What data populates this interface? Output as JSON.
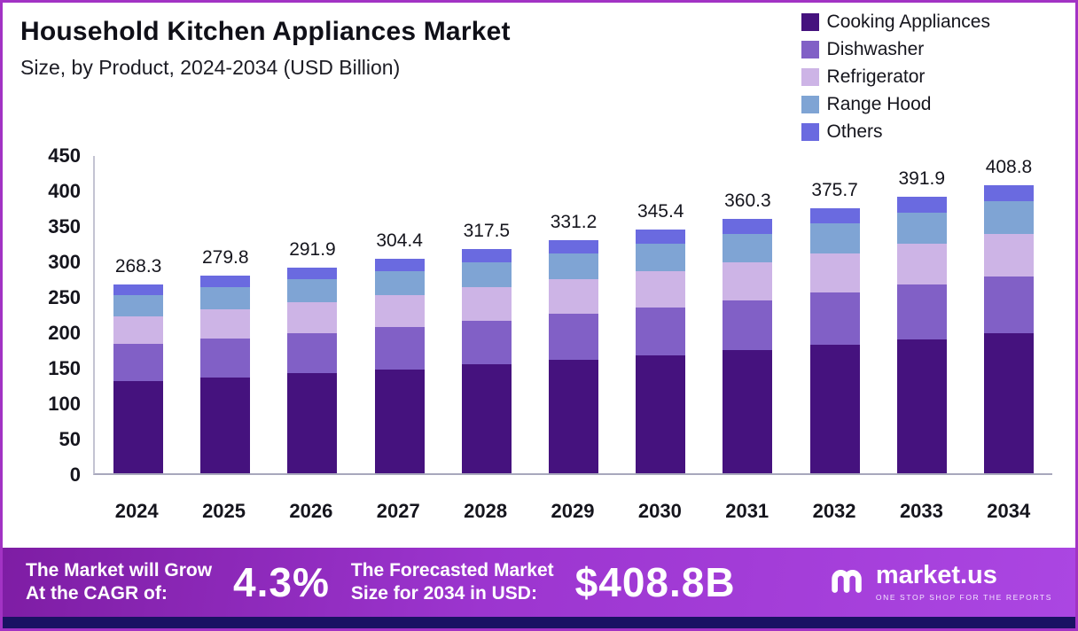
{
  "header": {
    "title": "Household Kitchen Appliances Market",
    "subtitle": "Size, by Product, 2024-2034 (USD Billion)"
  },
  "chart_data": {
    "type": "bar",
    "stacked": true,
    "title": "Household Kitchen Appliances Market",
    "subtitle": "Size, by Product, 2024-2034 (USD Billion)",
    "unit": "USD Billion",
    "legend_position": "top-right",
    "grid": false,
    "ylim": [
      0,
      450
    ],
    "y_ticks": [
      0,
      50,
      100,
      150,
      200,
      250,
      300,
      350,
      400,
      450
    ],
    "categories": [
      "2024",
      "2025",
      "2026",
      "2027",
      "2028",
      "2029",
      "2030",
      "2031",
      "2032",
      "2033",
      "2034"
    ],
    "totals": [
      268.3,
      279.8,
      291.9,
      304.4,
      317.5,
      331.2,
      345.4,
      360.3,
      375.7,
      391.9,
      408.8
    ],
    "series": [
      {
        "name": "Cooking Appliances",
        "color": "#45127e",
        "values": [
          130.1,
          135.7,
          141.6,
          147.6,
          154.0,
          160.6,
          167.5,
          174.7,
          182.2,
          190.1,
          198.3
        ]
      },
      {
        "name": "Dishwasher",
        "color": "#8160c6",
        "values": [
          52.9,
          55.1,
          57.5,
          60.0,
          62.5,
          65.2,
          68.0,
          71.0,
          74.0,
          77.2,
          80.5
        ]
      },
      {
        "name": "Refrigerator",
        "color": "#cdb4e6",
        "values": [
          39.7,
          41.4,
          43.2,
          45.1,
          47.0,
          49.0,
          51.1,
          53.3,
          55.6,
          58.0,
          60.5
        ]
      },
      {
        "name": "Range Hood",
        "color": "#7fa4d4",
        "values": [
          30.3,
          31.6,
          33.0,
          34.4,
          35.9,
          37.4,
          39.0,
          40.7,
          42.5,
          44.3,
          46.2
        ]
      },
      {
        "name": "Others",
        "color": "#6a6ae0",
        "values": [
          15.3,
          16.0,
          16.6,
          17.3,
          18.1,
          19.0,
          19.8,
          20.6,
          21.4,
          22.3,
          23.3
        ]
      }
    ]
  },
  "footer": {
    "cagr_label_line1": "The Market will Grow",
    "cagr_label_line2": "At the CAGR of:",
    "cagr_value": "4.3%",
    "forecast_label_line1": "The Forecasted Market",
    "forecast_label_line2": "Size for 2034 in USD:",
    "forecast_value": "$408.8B",
    "brand_name": "market.us",
    "brand_tagline": "ONE STOP SHOP FOR THE REPORTS"
  }
}
